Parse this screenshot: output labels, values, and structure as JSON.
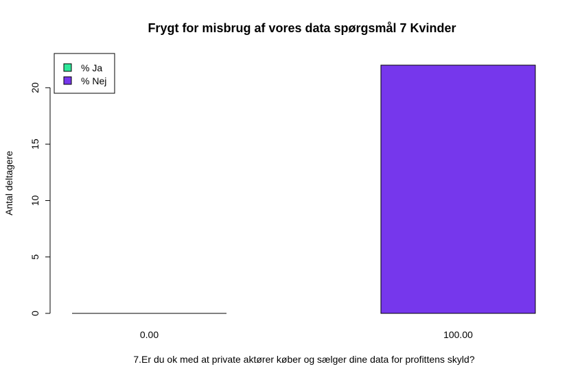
{
  "chart_data": {
    "type": "bar",
    "title": "Frygt for misbrug af vores data spørgsmål 7 Kvinder",
    "xlabel": "7.Er du ok med at private aktører køber og sælger dine data for profittens skyld?",
    "ylabel": "Antal deltagere",
    "categories": [
      "0.00",
      "100.00"
    ],
    "series": [
      {
        "name": "% Ja",
        "color": "#2ee89a",
        "values": [
          0,
          0
        ]
      },
      {
        "name": "% Nej",
        "color": "#7637ec",
        "values": [
          0,
          22
        ]
      }
    ],
    "ylim": [
      0,
      22
    ],
    "yticks": [
      0,
      5,
      10,
      15,
      20
    ],
    "legend": "top-left",
    "grid": false
  }
}
